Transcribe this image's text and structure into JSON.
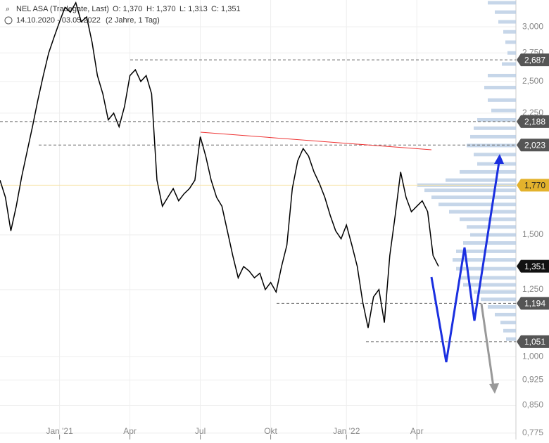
{
  "header": {
    "instrument": "NEL ASA (Tradegate, Last)",
    "ohlc": [
      "O: 1,370",
      "H: 1,370",
      "L: 1,313",
      "C: 1,351"
    ],
    "period": "14.10.2020 - 03.05.2022",
    "duration": "(2 Jahre, 1 Tag)"
  },
  "chart_data": {
    "type": "line",
    "log_scale": true,
    "grid": true,
    "categories": [
      null,
      null,
      null,
      null,
      null,
      null,
      null,
      null,
      null,
      null,
      null,
      "Jan '21",
      null,
      null,
      null,
      null,
      null,
      null,
      null,
      null,
      null,
      null,
      null,
      null,
      "Apr",
      null,
      null,
      null,
      null,
      null,
      null,
      null,
      null,
      null,
      null,
      null,
      null,
      "Jul",
      null,
      null,
      null,
      null,
      null,
      null,
      null,
      null,
      null,
      null,
      null,
      null,
      "Okt",
      null,
      null,
      null,
      null,
      null,
      null,
      null,
      null,
      null,
      null,
      null,
      null,
      null,
      "Jan '22",
      null,
      null,
      null,
      null,
      null,
      null,
      null,
      null,
      null,
      null,
      null,
      null,
      "Apr",
      null,
      null,
      null,
      null
    ],
    "series": [
      {
        "name": "NEL ASA",
        "color": "#000000",
        "values": [
          1.8,
          1.7,
          1.52,
          1.65,
          1.82,
          1.98,
          2.15,
          2.35,
          2.55,
          2.75,
          2.9,
          3.05,
          3.2,
          3.15,
          3.25,
          3.05,
          3.1,
          2.85,
          2.55,
          2.4,
          2.2,
          2.25,
          2.15,
          2.3,
          2.55,
          2.6,
          2.5,
          2.55,
          2.4,
          1.8,
          1.65,
          1.7,
          1.75,
          1.68,
          1.72,
          1.75,
          1.8,
          2.08,
          1.95,
          1.8,
          1.7,
          1.65,
          1.52,
          1.4,
          1.3,
          1.35,
          1.33,
          1.3,
          1.32,
          1.25,
          1.28,
          1.24,
          1.35,
          1.45,
          1.75,
          1.92,
          2.0,
          1.95,
          1.85,
          1.78,
          1.7,
          1.6,
          1.52,
          1.48,
          1.55,
          1.45,
          1.35,
          1.2,
          1.1,
          1.22,
          1.25,
          1.12,
          1.4,
          1.6,
          1.85,
          1.7,
          1.62,
          1.65,
          1.68,
          1.62,
          1.4,
          1.351
        ]
      }
    ],
    "ylim": [
      0.764,
      3.28
    ],
    "yticks": [
      {
        "value": 3.0,
        "label": "3,000"
      },
      {
        "value": 2.75,
        "label": "2,750"
      },
      {
        "value": 2.5,
        "label": "2,500"
      },
      {
        "value": 2.25,
        "label": "2,250"
      },
      {
        "value": 1.5,
        "label": "1,500"
      },
      {
        "value": 1.25,
        "label": "1,250"
      },
      {
        "value": 1.0,
        "label": "1,000"
      },
      {
        "value": 0.925,
        "label": "0,925"
      },
      {
        "value": 0.85,
        "label": "0,850"
      },
      {
        "value": 0.775,
        "label": "0,775"
      }
    ],
    "levels": [
      {
        "value": 2.687,
        "label": "2,687",
        "color": "#555555"
      },
      {
        "value": 2.188,
        "label": "2,188",
        "color": "#555555"
      },
      {
        "value": 2.023,
        "label": "2,023",
        "color": "#555555"
      },
      {
        "value": 1.77,
        "label": "1,770",
        "color": "#e3b22c"
      },
      {
        "value": 1.351,
        "label": "1,351",
        "color": "#111111"
      },
      {
        "value": 1.194,
        "label": "1,194",
        "color": "#555555"
      },
      {
        "value": 1.051,
        "label": "1,051",
        "color": "#555555"
      }
    ],
    "volume_profile": {
      "color": "#b8cce4",
      "prices": [
        3.25,
        3.15,
        3.05,
        2.95,
        2.85,
        2.75,
        2.65,
        2.55,
        2.45,
        2.35,
        2.27,
        2.2,
        2.14,
        2.08,
        2.02,
        1.96,
        1.9,
        1.85,
        1.8,
        1.77,
        1.74,
        1.7,
        1.66,
        1.62,
        1.58,
        1.54,
        1.5,
        1.46,
        1.42,
        1.38,
        1.34,
        1.3,
        1.27,
        1.24,
        1.21,
        1.18,
        1.15,
        1.12,
        1.09,
        1.06
      ],
      "values": [
        40,
        30,
        25,
        18,
        15,
        12,
        20,
        40,
        45,
        40,
        35,
        55,
        60,
        65,
        70,
        60,
        55,
        80,
        100,
        140,
        130,
        120,
        110,
        95,
        80,
        70,
        65,
        75,
        85,
        90,
        85,
        80,
        75,
        60,
        50,
        40,
        30,
        22,
        18,
        14
      ]
    }
  }
}
